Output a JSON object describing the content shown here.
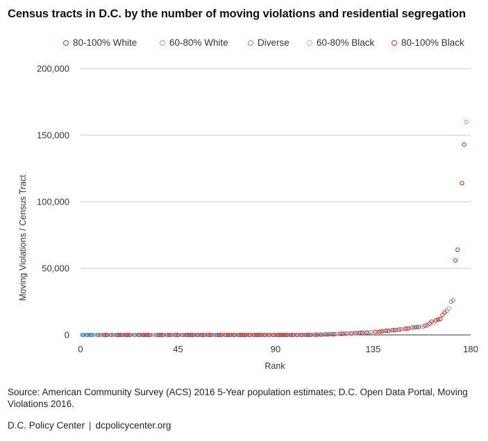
{
  "title": "Census tracts in D.C. by the number of moving violations and residential segregation",
  "source": "Source: American Community Survey (ACS) 2016 5-Year population estimates; D.C. Open Data Portal, Moving Violations 2016.",
  "footer": {
    "org": "D.C. Policy Center",
    "separator": "|",
    "url": "dcpolicycenter.org"
  },
  "chart_data": {
    "type": "scatter",
    "title": "Census tracts in D.C. by the number of moving violations and residential segregation",
    "xlabel": "Rank",
    "ylabel": "Moving Violations / Census Tract",
    "xlim": [
      0,
      180
    ],
    "ylim": [
      0,
      200000
    ],
    "xticks": [
      0,
      45,
      90,
      135,
      180
    ],
    "yticks": [
      0,
      50000,
      100000,
      150000,
      200000
    ],
    "ytick_labels": [
      "0",
      "50,000",
      "100,000",
      "150,000",
      "200,000"
    ],
    "xtick_labels": [
      "0",
      "45",
      "90",
      "135",
      "180"
    ],
    "grid": "horizontal",
    "legend_position": "top",
    "series": [
      {
        "name": "80-100% White",
        "color": "#1f6fb4",
        "x": [
          1,
          3,
          5,
          8,
          14,
          19,
          23,
          25,
          31,
          37,
          40,
          47,
          50,
          56,
          63,
          68,
          74,
          81,
          92,
          97,
          104,
          108,
          113,
          116,
          123,
          129,
          141,
          153,
          156
        ],
        "y": [
          0,
          0,
          0,
          0,
          0,
          0,
          0,
          0,
          0,
          0,
          0,
          0,
          0,
          0,
          0,
          0,
          0,
          0,
          0,
          0,
          100,
          200,
          400,
          600,
          1000,
          1600,
          3200,
          5500,
          6000
        ]
      },
      {
        "name": "60-80% White",
        "color": "#5bc0eb",
        "x": [
          2,
          6,
          10,
          16,
          26,
          34,
          43,
          53,
          61,
          72,
          86,
          101,
          112,
          118,
          126,
          133,
          146,
          158,
          170,
          178
        ],
        "y": [
          0,
          0,
          0,
          0,
          0,
          0,
          0,
          0,
          0,
          0,
          0,
          0,
          300,
          700,
          1200,
          1900,
          3600,
          6000,
          20000,
          160000
        ]
      },
      {
        "name": "Diverse",
        "color": "#8c8c8c",
        "x": [
          4,
          9,
          15,
          20,
          28,
          35,
          42,
          48,
          55,
          62,
          70,
          77,
          84,
          90,
          96,
          103,
          110,
          115,
          122,
          128,
          134,
          140,
          148,
          154,
          160,
          169,
          171,
          172
        ],
        "y": [
          0,
          0,
          0,
          0,
          0,
          0,
          0,
          0,
          0,
          0,
          0,
          0,
          0,
          0,
          0,
          50,
          250,
          500,
          900,
          1500,
          2100,
          3000,
          4200,
          5600,
          7200,
          18000,
          25000,
          26000
        ]
      },
      {
        "name": "60-80% Black",
        "color": "#f4a3a3",
        "x": [
          7,
          13,
          24,
          33,
          39,
          46,
          58,
          66,
          79,
          88,
          99,
          107,
          119,
          124,
          131,
          137,
          143,
          149,
          152,
          157,
          163
        ],
        "y": [
          0,
          0,
          0,
          0,
          0,
          0,
          0,
          0,
          0,
          0,
          0,
          150,
          800,
          1100,
          1700,
          2300,
          3400,
          4400,
          5000,
          6100,
          9000
        ]
      },
      {
        "name": "80-100% Black",
        "color": "#d7301f",
        "x": [
          11,
          12,
          17,
          18,
          21,
          22,
          27,
          29,
          30,
          32,
          36,
          38,
          41,
          44,
          45,
          49,
          51,
          52,
          54,
          57,
          59,
          60,
          64,
          65,
          67,
          69,
          71,
          73,
          75,
          76,
          78,
          80,
          82,
          83,
          85,
          87,
          89,
          91,
          93,
          94,
          95,
          98,
          100,
          102,
          105,
          106,
          109,
          111,
          114,
          117,
          120,
          121,
          125,
          127,
          130,
          132,
          136,
          138,
          139,
          142,
          144,
          145,
          147,
          150,
          151,
          155,
          159,
          161,
          162,
          164,
          165,
          166,
          167,
          168,
          173,
          174,
          176,
          177
        ],
        "y": [
          0,
          0,
          0,
          0,
          0,
          0,
          0,
          0,
          0,
          0,
          0,
          0,
          0,
          0,
          0,
          0,
          0,
          0,
          0,
          0,
          0,
          0,
          0,
          0,
          0,
          0,
          0,
          0,
          0,
          0,
          0,
          0,
          0,
          0,
          0,
          0,
          0,
          0,
          0,
          0,
          0,
          0,
          0,
          0,
          0,
          0,
          100,
          200,
          300,
          500,
          800,
          900,
          1100,
          1300,
          1600,
          1800,
          2200,
          2400,
          2600,
          3100,
          3500,
          3700,
          4000,
          4600,
          4800,
          5800,
          7000,
          8500,
          10000,
          11000,
          11500,
          12000,
          15000,
          17000,
          56000,
          64000,
          114000,
          143000
        ]
      }
    ]
  }
}
